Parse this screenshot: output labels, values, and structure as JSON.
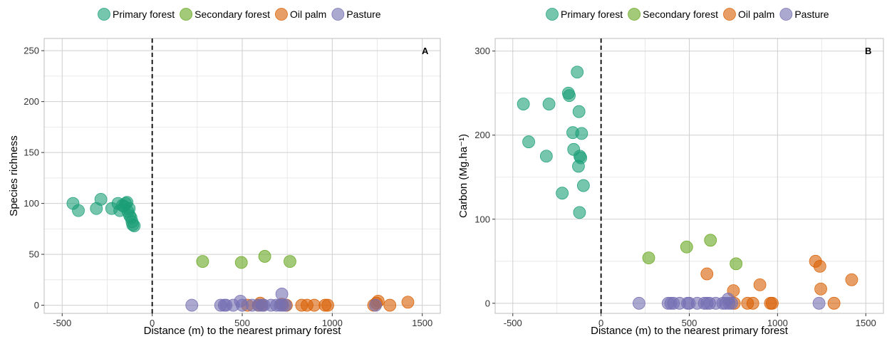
{
  "legend_colors": {
    "Primary forest": "#1b9e77",
    "Secondary forest": "#66a61e",
    "Oil palm": "#d95f02",
    "Pasture": "#7570b3"
  },
  "chart_data": [
    {
      "type": "scatter",
      "panel_label": "A",
      "xlabel": "Distance (m) to the nearest primary forest",
      "ylabel": "Species richness",
      "xlim": [
        -600,
        1600
      ],
      "ylim": [
        -8,
        262
      ],
      "xticks": [
        -500,
        0,
        500,
        1000,
        1500
      ],
      "yticks": [
        0,
        50,
        100,
        150,
        200,
        250
      ],
      "xtick_labels": [
        "-500",
        "0",
        "500",
        "1000",
        "1500"
      ],
      "ytick_labels": [
        "0",
        "50",
        "100",
        "150",
        "200",
        "250"
      ],
      "grid": true,
      "reference_line_x": 0,
      "legend": {
        "placement": "top",
        "entries": [
          "Primary forest",
          "Secondary forest",
          "Oil palm",
          "Pasture"
        ]
      },
      "series": [
        {
          "name": "Primary forest",
          "points": [
            [
              -440,
              100
            ],
            [
              -410,
              93
            ],
            [
              -310,
              95
            ],
            [
              -285,
              104
            ],
            [
              -225,
              95
            ],
            [
              -190,
              100
            ],
            [
              -180,
              93
            ],
            [
              -165,
              98
            ],
            [
              -155,
              97
            ],
            [
              -148,
              100
            ],
            [
              -140,
              101
            ],
            [
              -135,
              92
            ],
            [
              -128,
              95
            ],
            [
              -125,
              88
            ],
            [
              -118,
              86
            ],
            [
              -112,
              82
            ],
            [
              -108,
              79
            ],
            [
              -100,
              78
            ]
          ]
        },
        {
          "name": "Secondary forest",
          "points": [
            [
              280,
              43
            ],
            [
              495,
              42
            ],
            [
              625,
              48
            ],
            [
              765,
              43
            ]
          ]
        },
        {
          "name": "Oil palm",
          "points": [
            [
              530,
              0
            ],
            [
              590,
              0
            ],
            [
              600,
              2
            ],
            [
              610,
              0
            ],
            [
              720,
              1
            ],
            [
              745,
              0
            ],
            [
              830,
              0
            ],
            [
              860,
              0
            ],
            [
              900,
              0
            ],
            [
              960,
              0
            ],
            [
              975,
              0
            ],
            [
              1230,
              0
            ],
            [
              1245,
              2
            ],
            [
              1255,
              4
            ],
            [
              1320,
              0
            ],
            [
              1420,
              3
            ]
          ]
        },
        {
          "name": "Pasture",
          "points": [
            [
              220,
              0
            ],
            [
              380,
              0
            ],
            [
              400,
              0
            ],
            [
              410,
              0
            ],
            [
              450,
              0
            ],
            [
              490,
              4
            ],
            [
              500,
              0
            ],
            [
              555,
              0
            ],
            [
              590,
              0
            ],
            [
              610,
              0
            ],
            [
              620,
              0
            ],
            [
              660,
              0
            ],
            [
              690,
              0
            ],
            [
              710,
              0
            ],
            [
              720,
              11
            ],
            [
              725,
              0
            ],
            [
              740,
              0
            ],
            [
              1240,
              0
            ]
          ]
        }
      ]
    },
    {
      "type": "scatter",
      "panel_label": "B",
      "xlabel": "Distance (m) to the nearest primary forest",
      "ylabel": "Carbon (Mg.ha⁻¹)",
      "xlim": [
        -600,
        1600
      ],
      "ylim": [
        -12,
        315
      ],
      "xticks": [
        -500,
        0,
        500,
        1000,
        1500
      ],
      "yticks": [
        0,
        100,
        200,
        300
      ],
      "xtick_labels": [
        "-500",
        "0",
        "500",
        "1000",
        "1500"
      ],
      "ytick_labels": [
        "0",
        "100",
        "200",
        "300"
      ],
      "grid": true,
      "reference_line_x": 0,
      "legend": {
        "placement": "top",
        "entries": [
          "Primary forest",
          "Secondary forest",
          "Oil palm",
          "Pasture"
        ]
      },
      "series": [
        {
          "name": "Primary forest",
          "points": [
            [
              -440,
              237
            ],
            [
              -410,
              192
            ],
            [
              -310,
              175
            ],
            [
              -295,
              237
            ],
            [
              -220,
              131
            ],
            [
              -185,
              250
            ],
            [
              -180,
              247
            ],
            [
              -160,
              203
            ],
            [
              -155,
              183
            ],
            [
              -135,
              275
            ],
            [
              -128,
              163
            ],
            [
              -125,
              228
            ],
            [
              -122,
              108
            ],
            [
              -120,
              175
            ],
            [
              -115,
              173
            ],
            [
              -110,
              202
            ],
            [
              -100,
              140
            ]
          ]
        },
        {
          "name": "Secondary forest",
          "points": [
            [
              270,
              54
            ],
            [
              485,
              67
            ],
            [
              620,
              75
            ],
            [
              765,
              47
            ]
          ]
        },
        {
          "name": "Oil palm",
          "points": [
            [
              600,
              35
            ],
            [
              750,
              15
            ],
            [
              755,
              0
            ],
            [
              830,
              0
            ],
            [
              860,
              0
            ],
            [
              900,
              22
            ],
            [
              960,
              0
            ],
            [
              970,
              0
            ],
            [
              1215,
              50
            ],
            [
              1240,
              44
            ],
            [
              1245,
              17
            ],
            [
              1320,
              0
            ],
            [
              1420,
              28
            ]
          ]
        },
        {
          "name": "Pasture",
          "points": [
            [
              215,
              0
            ],
            [
              380,
              0
            ],
            [
              395,
              0
            ],
            [
              410,
              0
            ],
            [
              445,
              0
            ],
            [
              490,
              0
            ],
            [
              500,
              0
            ],
            [
              545,
              0
            ],
            [
              585,
              0
            ],
            [
              600,
              0
            ],
            [
              615,
              0
            ],
            [
              650,
              0
            ],
            [
              690,
              0
            ],
            [
              705,
              0
            ],
            [
              720,
              5
            ],
            [
              725,
              0
            ],
            [
              740,
              0
            ],
            [
              1235,
              0
            ]
          ]
        }
      ]
    }
  ]
}
